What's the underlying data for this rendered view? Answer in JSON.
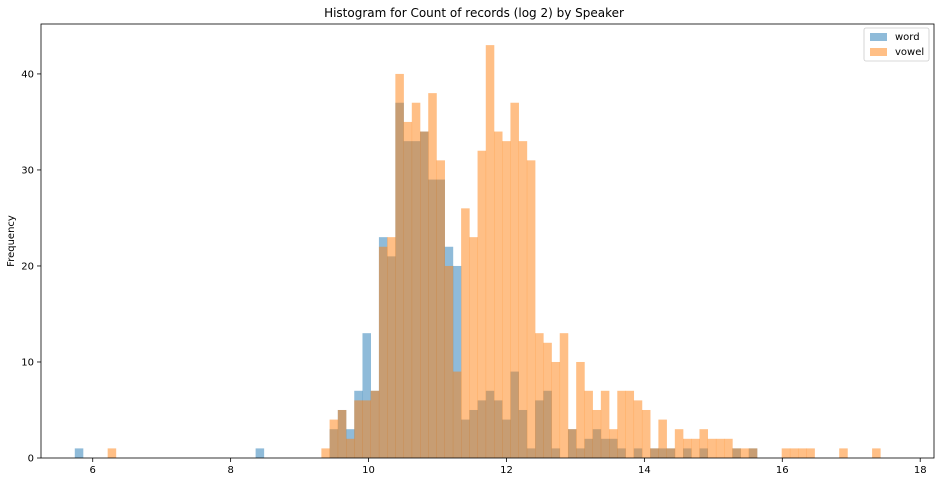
{
  "chart_data": {
    "type": "bar",
    "subtype": "overlaid-histogram",
    "title": "Histogram for Count of records (log 2) by Speaker",
    "xlabel": "",
    "ylabel": "Frequency",
    "xlim": [
      5.25,
      18.2
    ],
    "ylim": [
      0,
      45.2
    ],
    "xticks": [
      6,
      8,
      10,
      12,
      14,
      16,
      18
    ],
    "yticks": [
      0,
      10,
      20,
      30,
      40
    ],
    "grid": false,
    "legend_position": "top-right",
    "bin_start": 5.74,
    "bin_width": 0.1192,
    "series": [
      {
        "name": "word",
        "color": "#1f77b4",
        "alpha": 0.5,
        "values": [
          1,
          0,
          0,
          0,
          0,
          0,
          0,
          0,
          0,
          0,
          0,
          0,
          0,
          0,
          0,
          0,
          0,
          0,
          0,
          0,
          0,
          0,
          1,
          0,
          0,
          0,
          0,
          0,
          0,
          0,
          0,
          3,
          5,
          3,
          7,
          13,
          7,
          23,
          21,
          37,
          33,
          33,
          34,
          29,
          29,
          22,
          20,
          4,
          5,
          6,
          7,
          6,
          4,
          9,
          5,
          1,
          6,
          7,
          1,
          0,
          3,
          1,
          2,
          3,
          2,
          2,
          1,
          0,
          1,
          0,
          1,
          1,
          1,
          0,
          1,
          0,
          1,
          0,
          0,
          0,
          1,
          0,
          1,
          0,
          0,
          0,
          0,
          0,
          0,
          0,
          0,
          0,
          0,
          0,
          0,
          0,
          0,
          0,
          0,
          0
        ]
      },
      {
        "name": "vowel",
        "color": "#ff7f0e",
        "alpha": 0.5,
        "values": [
          0,
          0,
          0,
          0,
          1,
          0,
          0,
          0,
          0,
          0,
          0,
          0,
          0,
          0,
          0,
          0,
          0,
          0,
          0,
          0,
          0,
          0,
          0,
          0,
          0,
          0,
          0,
          0,
          0,
          0,
          1,
          4,
          5,
          2,
          6,
          6,
          7,
          22,
          23,
          40,
          35,
          37,
          34,
          38,
          31,
          20,
          9,
          26,
          23,
          32,
          43,
          34,
          33,
          37,
          33,
          31,
          13,
          12,
          10,
          13,
          3,
          10,
          7,
          5,
          7,
          3,
          7,
          7,
          6,
          5,
          1,
          4,
          1,
          3,
          2,
          2,
          3,
          2,
          2,
          2,
          1,
          1,
          1,
          0,
          0,
          0,
          1,
          1,
          1,
          1,
          0,
          0,
          0,
          1,
          0,
          0,
          0,
          1,
          0,
          0
        ]
      }
    ]
  }
}
